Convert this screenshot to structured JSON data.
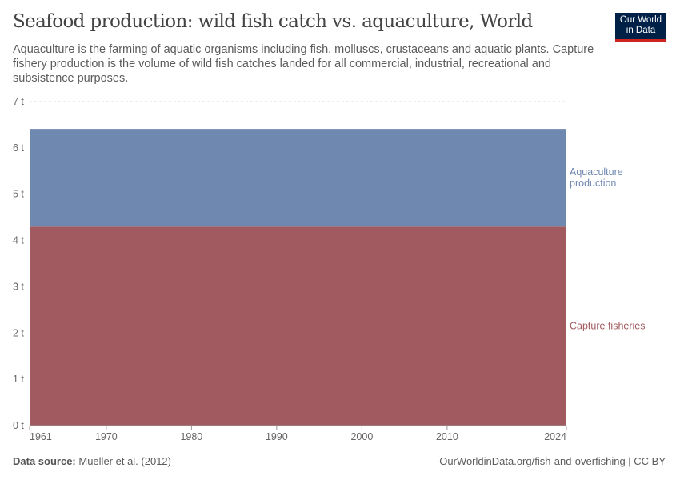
{
  "header": {
    "title": "Seafood production: wild fish catch vs. aquaculture, World",
    "subtitle": "Aquaculture is the farming of aquatic organisms including fish, molluscs, crustaceans and aquatic plants. Capture fishery production is the volume of wild fish catches landed for all commercial, industrial, recreational and subsistence purposes.",
    "logo": "Our World in Data"
  },
  "footer": {
    "source_label": "Data source:",
    "source": "Mueller et al. (2012)",
    "url": "OurWorldinData.org/fish-and-overfishing | CC BY"
  },
  "chart_data": {
    "type": "area",
    "stacked": true,
    "x": [
      1961,
      2024
    ],
    "xlim": [
      1961,
      2024
    ],
    "ylim": [
      0,
      7
    ],
    "x_ticks": [
      "1961",
      "1970",
      "1980",
      "1990",
      "2000",
      "2010",
      "2024"
    ],
    "y_ticks": [
      "0 t",
      "1 t",
      "2 t",
      "3 t",
      "4 t",
      "5 t",
      "6 t",
      "7 t"
    ],
    "grid": "horizontal dashed",
    "legend": "right inline labels",
    "series": [
      {
        "name": "Capture fisheries",
        "values": [
          4.3,
          4.3
        ],
        "color": "#a05a60"
      },
      {
        "name": "Aquaculture production",
        "values": [
          2.11,
          2.11
        ],
        "color": "#6f88b0"
      }
    ]
  }
}
